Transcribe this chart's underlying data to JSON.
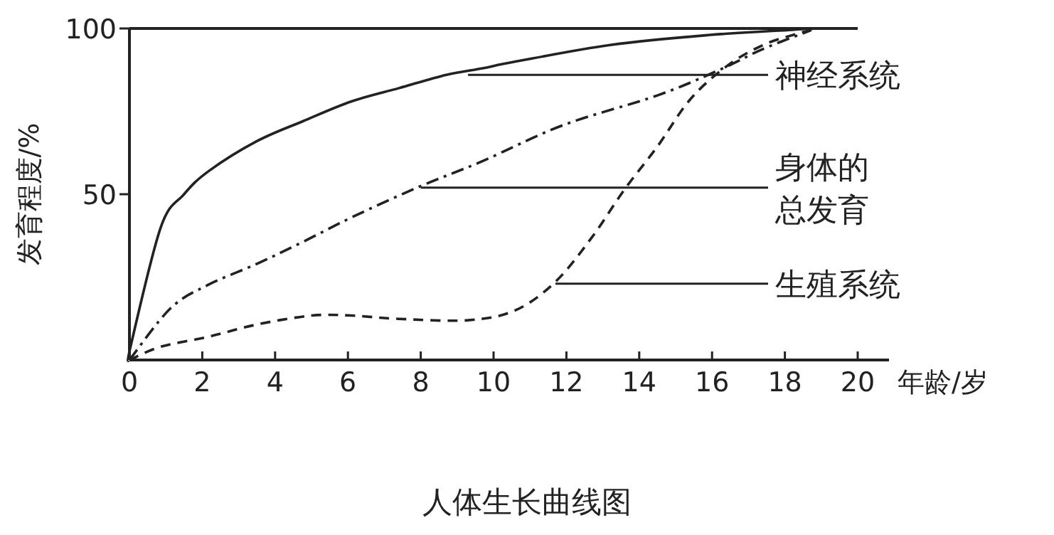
{
  "chart_data": {
    "type": "line",
    "title": "人体生长曲线图",
    "xlabel": "年龄/岁",
    "ylabel": "发育程度/%",
    "xlim": [
      0,
      20
    ],
    "ylim": [
      0,
      100
    ],
    "xticks": [
      0,
      2,
      4,
      6,
      8,
      10,
      12,
      14,
      16,
      18,
      20
    ],
    "yticks": [
      50,
      100
    ],
    "grid": false,
    "marker": "none",
    "series": [
      {
        "color": "#222222",
        "line_style": "solid",
        "x": [
          0,
          0.03,
          0.86,
          1.5,
          2.18,
          3.5,
          4.76,
          6.1,
          7.4,
          8.7,
          9.7,
          10.6,
          13.2,
          15.9,
          18.2,
          18.7
        ],
        "values": [
          0,
          4,
          40,
          50,
          57,
          66,
          72,
          78,
          82,
          86,
          88,
          90,
          95,
          98,
          99.6,
          100
        ]
      },
      {
        "color": "#222222",
        "line_style": "dashdot",
        "x": [
          0,
          1.13,
          2.17,
          3.5,
          4.76,
          6.1,
          7.9,
          9.7,
          11.9,
          14.5,
          16.2,
          17.4,
          18.7
        ],
        "values": [
          0,
          15.6,
          22.7,
          29,
          35.6,
          43,
          52,
          60,
          70.8,
          79.8,
          87.5,
          93.8,
          99.4
        ]
      },
      {
        "color": "#222222",
        "line_style": "dashed",
        "x": [
          0,
          0.86,
          2.17,
          3.5,
          5,
          6.1,
          7.4,
          9.3,
          10.6,
          11.7,
          12.7,
          13.6,
          14.5,
          15.4,
          16.4,
          17.4,
          18.4,
          18.9
        ],
        "values": [
          0,
          4,
          7,
          10.7,
          13.4,
          13.4,
          12.4,
          12,
          15,
          23.6,
          37,
          51.5,
          64.4,
          78.6,
          88.6,
          95,
          98.6,
          100
        ]
      }
    ],
    "annotations": [
      {
        "text": "神经系统",
        "x": 9.3,
        "y": 86
      },
      {
        "text": "身体的总发育",
        "x": 8,
        "y": 52
      },
      {
        "text": "生殖系统",
        "x": 11.7,
        "y": 23
      }
    ]
  }
}
